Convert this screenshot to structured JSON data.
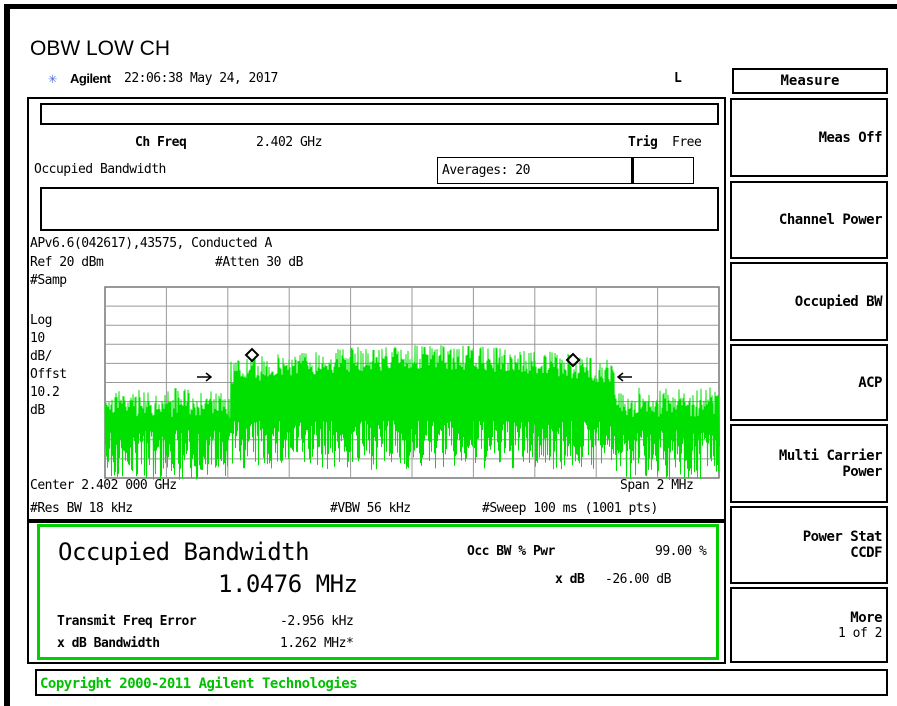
{
  "title": "OBW LOW CH",
  "status": {
    "brand": "Agilent",
    "time": "22:06:38  May 24, 2017",
    "indicator": "L"
  },
  "menu_title": "Measure",
  "panel": {
    "ch_freq_label": "Ch Freq",
    "ch_freq": "2.402 GHz",
    "trig_label": "Trig",
    "trig": "Free",
    "measurement": "Occupied Bandwidth",
    "averages": "Averages: 20",
    "info": "APv6.6(042617),43575, Conducted A",
    "ref": "Ref 20 dBm",
    "atten": "#Atten 30 dB",
    "scale_labels": [
      "#Samp",
      "Log",
      "10",
      "dB/",
      "Offst",
      "10.2",
      "dB"
    ],
    "center": "Center 2.402 000 GHz",
    "span": "Span 2 MHz",
    "res_bw": "#Res BW 18 kHz",
    "vbw": "#VBW 56 kHz",
    "sweep": "#Sweep 100 ms (1001 pts)"
  },
  "results": {
    "heading": "Occupied Bandwidth",
    "obw": "1.0476 MHz",
    "pwr_label": "Occ BW % Pwr",
    "pwr": "99.00 %",
    "xdb_label": "x dB",
    "xdb": "-26.00 dB",
    "freq_error_label": "Transmit Freq Error",
    "freq_error": "-2.956 kHz",
    "xdb_bw_label": "x dB Bandwidth",
    "xdb_bw": "1.262 MHz*"
  },
  "softkeys": [
    [
      "Meas Off"
    ],
    [
      "Channel Power"
    ],
    [
      "Occupied BW"
    ],
    [
      "ACP"
    ],
    [
      "Multi Carrier",
      "Power"
    ],
    [
      "Power Stat",
      "CCDF"
    ],
    [
      "More",
      "1 of 2"
    ]
  ],
  "copyright": "Copyright 2000-2011 Agilent Technologies"
}
